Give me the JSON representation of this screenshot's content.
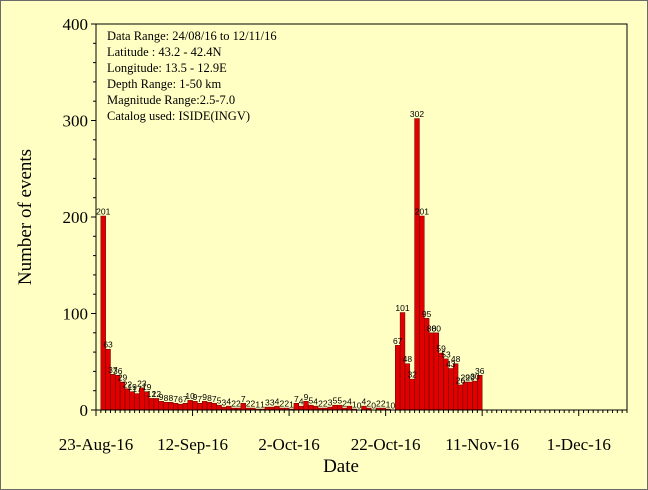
{
  "info_lines": [
    "Data Range: 24/08/16 to 12/11/16",
    "Latitude : 43.2 - 42.4N",
    "Longitude: 13.5 - 12.9E",
    "Depth Range: 1-50 km",
    "Magnitude Range:2.5-7.0",
    "Catalog used: ISIDE(INGV)"
  ],
  "colors": {
    "background": "#ffffc4",
    "bar": "#e00000",
    "bar_edge": "#600000"
  },
  "chart_data": {
    "type": "bar",
    "title": "",
    "xlabel": "Date",
    "ylabel": "Number of events",
    "ylim": [
      0,
      400
    ],
    "yticks": [
      0,
      100,
      200,
      300,
      400
    ],
    "xlim": [
      "2016-08-23",
      "2016-12-11"
    ],
    "xticks": [
      "23-Aug-16",
      "12-Sep-16",
      "2-Oct-16",
      "22-Oct-16",
      "11-Nov-16",
      "1-Dec-16"
    ],
    "start_date": "2016-08-24",
    "bar_width_days": 1,
    "values": [
      201,
      63,
      37,
      36,
      29,
      22,
      19,
      17,
      23,
      19,
      12,
      12,
      9,
      8,
      8,
      7,
      6,
      7,
      10,
      9,
      7,
      9,
      8,
      7,
      5,
      3,
      4,
      2,
      2,
      7,
      2,
      2,
      1,
      1,
      3,
      3,
      4,
      2,
      2,
      1,
      7,
      4,
      9,
      5,
      4,
      2,
      2,
      3,
      5,
      5,
      2,
      4,
      1,
      0,
      4,
      2,
      0,
      2,
      2,
      1,
      0,
      67,
      101,
      48,
      32,
      302,
      201,
      95,
      80,
      80,
      59,
      53,
      43,
      48,
      26,
      29,
      29,
      30,
      36
    ],
    "data_labels": [
      "201",
      "63",
      "37",
      "36",
      "29",
      "22",
      "19",
      "17",
      "23",
      "19",
      "12",
      "12",
      "9",
      "8",
      "8",
      "7",
      "6",
      "7",
      "10",
      "9",
      "7",
      "9",
      "8",
      "7",
      "5",
      "3",
      "4",
      "2",
      "2",
      "7",
      "2",
      "2",
      "1",
      "1",
      "3",
      "3",
      "4",
      "2",
      "2",
      "1",
      "7",
      "4",
      "9",
      "5",
      "4",
      "2",
      "2",
      "3",
      "5",
      "5",
      "2",
      "4",
      "1",
      "0",
      "4",
      "2",
      "0",
      "2",
      "2",
      "1",
      "0",
      "67",
      "101",
      "48",
      "32",
      "302",
      "201",
      "95",
      "80",
      "80",
      "59",
      "53",
      "43",
      "48",
      "26",
      "29",
      "29",
      "30",
      "36"
    ]
  }
}
